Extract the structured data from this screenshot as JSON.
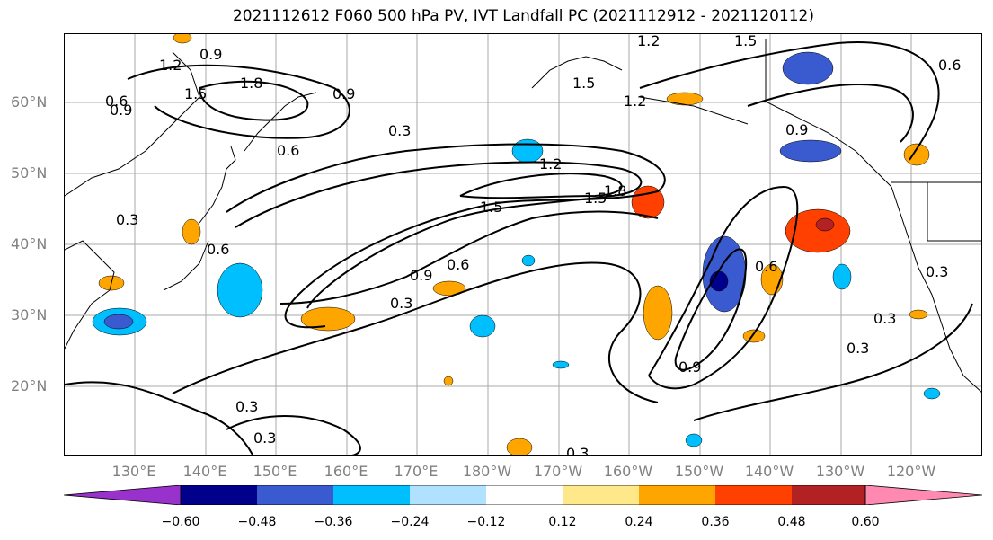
{
  "title": "2021112612 F060 500 hPa PV, IVT Landfall PC (2021112912 - 2021120112)",
  "lat_labels": [
    "60°N",
    "50°N",
    "40°N",
    "30°N",
    "20°N"
  ],
  "lon_labels": [
    "130°E",
    "140°E",
    "150°E",
    "160°E",
    "170°E",
    "180°W",
    "170°W",
    "160°W",
    "150°W",
    "140°W",
    "130°W",
    "120°W"
  ],
  "contour_labels": [
    "0.9",
    "1.2",
    "1.8",
    "1.5",
    "0.9",
    "0.6",
    "0.3",
    "0.6",
    "1.2",
    "1.5",
    "1.2",
    "1.5",
    "1.2",
    "1.5",
    "0.9",
    "1.5",
    "1.8",
    "0.9",
    "0.6",
    "0.3",
    "0.6",
    "0.9",
    "0.6",
    "0.3",
    "0.3",
    "0.3",
    "0.3",
    "0.3",
    "0.3",
    "0.9",
    "0.3",
    "0.6"
  ],
  "colorbar": {
    "ticks": [
      "−0.60",
      "−0.48",
      "−0.36",
      "−0.24",
      "−0.12",
      "0.12",
      "0.24",
      "0.36",
      "0.48",
      "0.60"
    ],
    "colors": [
      "#9932cc",
      "#00008b",
      "#3a5bcf",
      "#00bfff",
      "#b0e2ff",
      "#ffffff",
      "#ffe88a",
      "#ffa500",
      "#ff4000",
      "#b22222",
      "#ff89b0"
    ]
  },
  "map": {
    "lat_range": [
      10,
      70
    ],
    "lon_range_east": [
      120,
      250
    ],
    "grid": true,
    "contour_field": "500 hPa PV",
    "shaded_field": "IVT Landfall PC"
  }
}
